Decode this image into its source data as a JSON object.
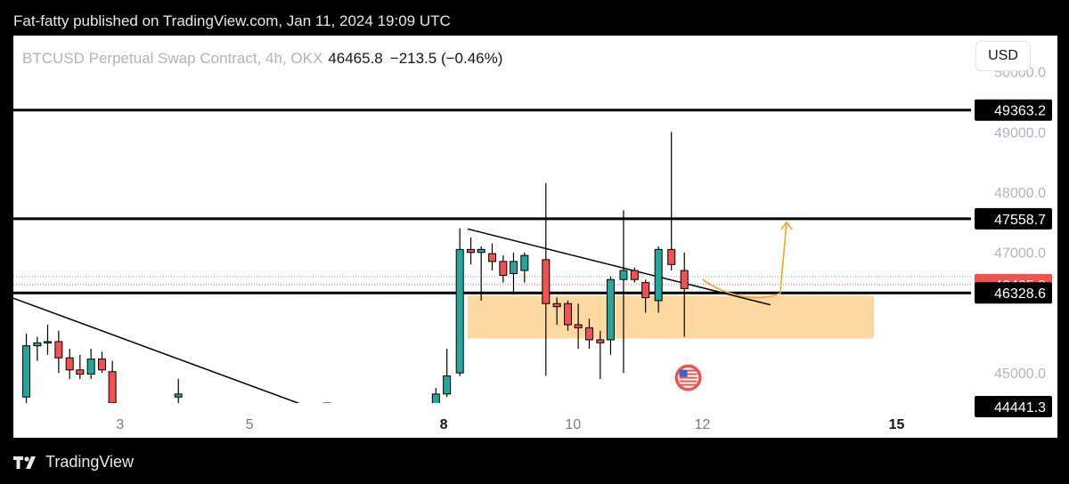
{
  "header": {
    "published": "Fat-fatty published on TradingView.com, Jan 11, 2024 19:09 UTC"
  },
  "legend": {
    "symbol": "BTCUSD Perpetual Swap Contract, 4h, OKX",
    "price": "46465.8",
    "change": "−213.5 (−0.46%)"
  },
  "currency_button": "USD",
  "footer": {
    "brand": "TradingView",
    "logo_icon": "tradingview-logo-icon"
  },
  "chart_data": {
    "type": "candlestick",
    "symbol": "BTCUSD",
    "interval": "4h",
    "exchange": "OKX",
    "x_ticks": [
      {
        "label": "3",
        "x": 3
      },
      {
        "label": "5",
        "x": 5
      },
      {
        "label": "8",
        "x": 8,
        "bold": true
      },
      {
        "label": "10",
        "x": 10
      },
      {
        "label": "12",
        "x": 12
      },
      {
        "label": "15",
        "x": 15,
        "bold": true
      }
    ],
    "y_ticks": [
      {
        "label": "50000.0",
        "y": 50000
      },
      {
        "label": "49000.0",
        "y": 49000
      },
      {
        "label": "48000.0",
        "y": 48000
      },
      {
        "label": "47000.0",
        "y": 47000
      },
      {
        "label": "45000.0",
        "y": 45000
      }
    ],
    "ylim": [
      44500,
      50600
    ],
    "xlim": [
      1.35,
      16.15
    ],
    "price_labels": [
      {
        "label": "49363.2",
        "y": 49363.2,
        "style": "dark"
      },
      {
        "label": "47558.7",
        "y": 47558.7,
        "style": "dark"
      },
      {
        "label": "46465.8",
        "y": 46465.8,
        "style": "red"
      },
      {
        "label": "46328.6",
        "y": 46328.6,
        "style": "dark"
      },
      {
        "label": "44441.3",
        "y": 44441.3,
        "style": "dark"
      }
    ],
    "horizontal_lines": [
      49363.2,
      47558.7,
      46328.6
    ],
    "current_price_line": 46465.8,
    "dotted_line": 46600,
    "demand_zone": {
      "x_start": 8.37,
      "x_end": 14.65,
      "y_low": 45570,
      "y_high": 46280,
      "color": "#fdd8a0"
    },
    "trendlines": [
      {
        "from": [
          1.35,
          46240
        ],
        "to": [
          5.8,
          44480
        ]
      },
      {
        "from": [
          8.37,
          47390
        ],
        "to": [
          13.05,
          46130
        ]
      }
    ],
    "projection_color": "#f7a325",
    "projection_path": [
      [
        12.0,
        46550
      ],
      [
        12.4,
        46250
      ],
      [
        12.9,
        46180
      ],
      [
        13.2,
        46320
      ],
      [
        13.3,
        47500
      ]
    ],
    "candles": [
      {
        "x": 1.55,
        "o": 44600,
        "h": 45650,
        "l": 44500,
        "c": 45450
      },
      {
        "x": 1.72,
        "o": 45450,
        "h": 45600,
        "l": 45200,
        "c": 45500
      },
      {
        "x": 1.88,
        "o": 45500,
        "h": 45800,
        "l": 45300,
        "c": 45520
      },
      {
        "x": 2.05,
        "o": 45520,
        "h": 45700,
        "l": 45000,
        "c": 45250
      },
      {
        "x": 2.22,
        "o": 45250,
        "h": 45400,
        "l": 44900,
        "c": 45050
      },
      {
        "x": 2.38,
        "o": 45050,
        "h": 45300,
        "l": 44900,
        "c": 44980
      },
      {
        "x": 2.55,
        "o": 44980,
        "h": 45400,
        "l": 44900,
        "c": 45230
      },
      {
        "x": 2.72,
        "o": 45230,
        "h": 45350,
        "l": 45000,
        "c": 45050
      },
      {
        "x": 2.88,
        "o": 45020,
        "h": 45200,
        "l": 44500,
        "c": 44500
      },
      {
        "x": 3.9,
        "o": 44600,
        "h": 44900,
        "l": 44500,
        "c": 44650
      },
      {
        "x": 6.2,
        "o": 44500,
        "h": 44500,
        "l": 44450,
        "c": 44480
      },
      {
        "x": 7.88,
        "o": 44480,
        "h": 44750,
        "l": 44450,
        "c": 44650
      },
      {
        "x": 8.05,
        "o": 44650,
        "h": 45400,
        "l": 44600,
        "c": 44950
      },
      {
        "x": 8.25,
        "o": 45000,
        "h": 47400,
        "l": 44950,
        "c": 47050
      },
      {
        "x": 8.42,
        "o": 47050,
        "h": 47250,
        "l": 46800,
        "c": 47000
      },
      {
        "x": 8.58,
        "o": 47000,
        "h": 47100,
        "l": 46200,
        "c": 47050
      },
      {
        "x": 8.75,
        "o": 46980,
        "h": 47150,
        "l": 46700,
        "c": 46850
      },
      {
        "x": 8.92,
        "o": 46850,
        "h": 46950,
        "l": 46500,
        "c": 46620
      },
      {
        "x": 9.08,
        "o": 46650,
        "h": 47000,
        "l": 46300,
        "c": 46850
      },
      {
        "x": 9.25,
        "o": 46700,
        "h": 47000,
        "l": 46500,
        "c": 46950
      },
      {
        "x": 9.58,
        "o": 46880,
        "h": 48150,
        "l": 44950,
        "c": 46150
      },
      {
        "x": 9.75,
        "o": 46150,
        "h": 46250,
        "l": 45800,
        "c": 46100
      },
      {
        "x": 9.92,
        "o": 46150,
        "h": 46200,
        "l": 45700,
        "c": 45800
      },
      {
        "x": 10.08,
        "o": 45800,
        "h": 46150,
        "l": 45400,
        "c": 45750
      },
      {
        "x": 10.25,
        "o": 45750,
        "h": 45900,
        "l": 45400,
        "c": 45550
      },
      {
        "x": 10.42,
        "o": 45550,
        "h": 45700,
        "l": 44900,
        "c": 45500
      },
      {
        "x": 10.58,
        "o": 45550,
        "h": 46600,
        "l": 45300,
        "c": 46550
      },
      {
        "x": 10.78,
        "o": 46550,
        "h": 47700,
        "l": 45000,
        "c": 46700
      },
      {
        "x": 10.95,
        "o": 46700,
        "h": 46750,
        "l": 46500,
        "c": 46550
      },
      {
        "x": 11.12,
        "o": 46500,
        "h": 46550,
        "l": 46000,
        "c": 46250
      },
      {
        "x": 11.32,
        "o": 46200,
        "h": 47100,
        "l": 46000,
        "c": 47050
      },
      {
        "x": 11.52,
        "o": 47050,
        "h": 49000,
        "l": 46700,
        "c": 46800
      },
      {
        "x": 11.72,
        "o": 46700,
        "h": 47000,
        "l": 45600,
        "c": 46400
      }
    ],
    "up_color": "#26a69a",
    "down_color": "#ef5350",
    "event_icon": {
      "x": 11.78,
      "y": 44920,
      "name": "us-flag-icon"
    }
  }
}
